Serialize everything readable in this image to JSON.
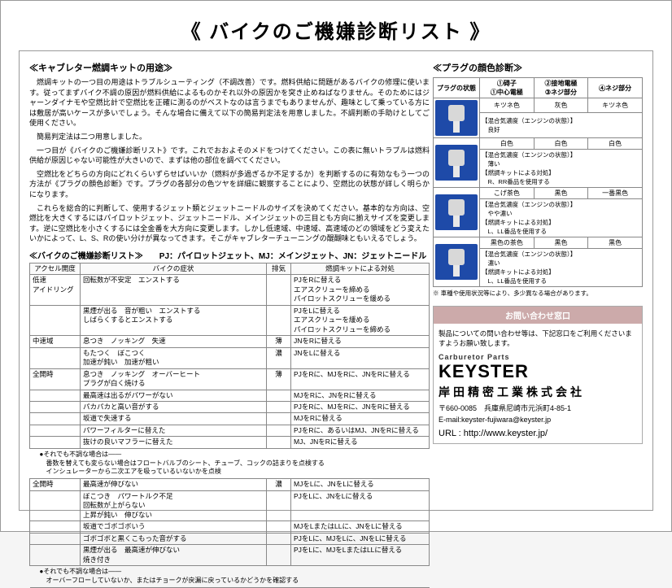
{
  "title": "《 バイクのご機嫌診断リスト 》",
  "intro": {
    "heading": "≪キャブレター燃調キットの用途≫",
    "p1": "燃調キットの一つ目の用途はトラブルシューティング（不調改善）です。燃料供給に問題があるバイクの修理に使います。従ってまずバイク不調の原因が燃料供給によるものかそれ以外の原因かを突き止めねばなりません。そのためにはジャーンダイナモや空燃比計で空燃比を正確に測るのがベストなのは言うまでもありませんが、趣味として乗っている方には敷居が高いケースが多いでしょう。そんな場合に備えて以下の簡易判定法を用意しました。不調判断の手助けとしてご使用ください。",
    "p2": "簡易判定法は二つ用意しました。",
    "p3": "一つ目が《バイクのご機嫌診断リスト》です。これでおおよそのメドをつけてください。この表に無いトラブルは燃料供給が原因じゃない可能性が大きいので、まずは他の部位を調べてください。",
    "p4": "空燃比をどちらの方向にどれくらいずらせばいいか（燃料が多過ぎるか不足するか）を判断するのに有効なもう一つの方法が《プラグの顔色診断》です。プラグの各部分の色ツヤを詳細に観察することにより、空燃比の状態が詳しく明らかになります。",
    "p5": "これらを総合的に判断して、使用するジェット類とジェットニードルのサイズを決めてください。基本的な方向は、空燃比を大きくするにはパイロットジェット、ジェットニードル、メインジェットの三目とも方向に揃えサイズを変更します。逆に空燃比を小さくするには全金番を大方向に変更します。しかし低速域、中速域、高速域のどの領域をどう変えたいかによって、L、S、Rの使い分けが異なってきます。そこがキャブレターチューニングの醍醐味ともいえるでしょう。"
  },
  "listCaption": "≪バイクのご機嫌診断リスト≫　　PJ：パイロットジェット、MJ：メインジェット、JN：ジェットニードル",
  "diagHeaders": [
    "アクセル開度",
    "バイクの症状",
    "排気",
    "燃調キットによる対処"
  ],
  "diag": [
    {
      "c0": "低速\nアイドリング",
      "c1": "回転数が不安定　エンストする",
      "c2": "",
      "c3": "PJをRに替える\nエアスクリューを締める\nパイロットスクリューを緩める"
    },
    {
      "c0": "",
      "c1": "黒煙が出る　音が粗い　エンストする\nしばらくするとエンストする",
      "c2": "",
      "c3": "PJをLに替える\nエアスクリューを緩める\nパイロットスクリューを締める"
    },
    {
      "c0": "中速域",
      "c1": "息つき　ノッキング　失速",
      "c2": "薄",
      "c3": "JNをRに替える"
    },
    {
      "c0": "",
      "c1": "もたつく　ぼこつく\n加速が鈍い　加速が粗い",
      "c2": "濃",
      "c3": "JNをLに替える"
    },
    {
      "c0": "全開時",
      "c1": "息つき　ノッキング　オーバーヒート\nプラグが白く焼ける",
      "c2": "薄",
      "c3": "PJをRに、MJをRに、JNをRに替える"
    },
    {
      "c0": "",
      "c1": "最高速は出るがパワーがない",
      "c2": "",
      "c3": "MJをRに、JNをRに替える"
    },
    {
      "c0": "",
      "c1": "パカパカと高い音がする",
      "c2": "",
      "c3": "PJをRに、MJをRに、JNをRに替える"
    },
    {
      "c0": "",
      "c1": "坂道で失速する",
      "c2": "",
      "c3": "MJをRに替える"
    },
    {
      "c0": "",
      "c1": "パワーフィルターに替えた",
      "c2": "",
      "c3": "PJをRに、あるいはMJ、JNをRに替える"
    },
    {
      "c0": "",
      "c1": "抜けの良いマフラーに替えた",
      "c2": "",
      "c3": "MJ、JNをRに替える"
    },
    {
      "note": "●それでも不調な場合は――\n　番数を替えても変らない場合はフロートバルブのシート、チューブ、コックの詰まりを点検する\n　インシュレーターから二次エアを吸っているいないかを点検"
    },
    {
      "c0": "全開時",
      "c1": "最高速が伸びない",
      "c2": "濃",
      "c3": "MJをLに、JNをLに替える"
    },
    {
      "c0": "",
      "c1": "ぼこつき　パワートルク不足\n回転数が上がらない\n上昇が鈍い　伸びない",
      "c2": "",
      "c3": "PJをLに、JNをLに替える"
    },
    {
      "c0": "",
      "c1": "坂道でゴボゴボいう",
      "c2": "",
      "c3": "MJをLまたはLLに、JNをLに替える"
    },
    {
      "c0": "",
      "c1": "ゴボゴボと黒くこもった音がする",
      "c2": "",
      "c3": "PJをLに、MJをLに、JNをLに替える"
    },
    {
      "c0": "",
      "c1": "黒煙が出る　最高速が伸びない\n焼き付き",
      "c2": "",
      "c3": "PJをLに、MJをLまたはLLに替える"
    },
    {
      "note": "●それでも不調な場合は――\n　オーバーフローしていないか、またはチョークが戻漏に戻っているかどうかを確認する"
    }
  ],
  "plugHeading": "≪プラグの顔色診断≫",
  "plugHeaders": [
    "プラグの状態",
    "①碍子\n①中心電極",
    "②接地電極\n③ネジ部分",
    "④ネジ部分"
  ],
  "plugRows": [
    {
      "r": [
        "キツネ色",
        "灰色",
        "キツネ色"
      ],
      "a": "【混合気濃度（エンジンの状態）】\n　良好"
    },
    {
      "r": [
        "白色",
        "白色",
        "白色"
      ],
      "a": "【混合気濃度（エンジンの状態）】\n　薄い\n【燃調キットによる対処】\n　R、RR番品を使用する"
    },
    {
      "r": [
        "こげ茶色",
        "黒色",
        "一番黒色"
      ],
      "a": "【混合気濃度（エンジンの状態）】\n　やや濃い\n【燃調キットによる対処】\n　L、LL番品を使用する"
    },
    {
      "r": [
        "黒色の茶色",
        "黒色",
        "黒色"
      ],
      "a": "【混合気濃度（エンジンの状態）】\n　濃い\n【燃調キットによる対処】\n　L、LL番品を使用する"
    }
  ],
  "plugFoot": "※ 車種や使用状況等により、多少異なる場合があります。",
  "contact": {
    "header": "お問い合わせ窓口",
    "note": "製品についての問い合わせ等は、下記窓口をご利用くださいますようお願い致します。",
    "logoTop": "Carburetor Parts",
    "logo": "KEYSTER",
    "company": "岸田精密工業株式会社",
    "addr": "〒660-0085　兵庫県尼崎市元浜町4-85-1",
    "email": "E-mail:keyster-fujiwara@keyster.jp",
    "urlLabel": "URL : ",
    "url": "http://www.keyster.jp/"
  }
}
